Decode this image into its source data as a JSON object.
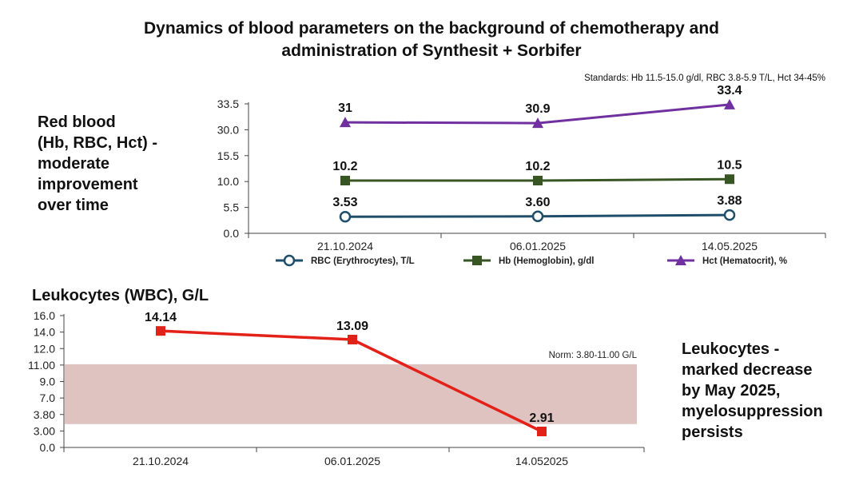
{
  "title": {
    "line1": "Dynamics of blood parameters on the background of chemotherapy and",
    "line2": "administration of Synthesit + Sorbifer"
  },
  "standards_note": "Standards: Hb 11.5-15.0 g/dl, RBC 3.8-5.9 T/L, Hct 34-45%",
  "red_blood_note": [
    "Red blood",
    "(Hb, RBC, Hct) -",
    "moderate",
    "improvement",
    "over time"
  ],
  "leukocytes_note": [
    "Leukocytes -",
    "marked decrease",
    "by May 2025,",
    "myelosuppression",
    "persists"
  ],
  "chart_data": [
    {
      "type": "line",
      "title": "",
      "categories": [
        "21.10.2024",
        "06.01.2025",
        "14.05.2025"
      ],
      "y_ticks": [
        "0.0",
        "5.5",
        "10.0",
        "15.5",
        "30.0",
        "33.5"
      ],
      "series": [
        {
          "name": "RBC (Erythrocytes), T/L",
          "values": [
            3.53,
            3.6,
            3.88
          ],
          "labels": [
            "3.53",
            "3.60",
            "3.88"
          ],
          "color": "#1f4e6b",
          "marker": "circle"
        },
        {
          "name": "Hb (Hemoglobin), g/dl",
          "values": [
            10.2,
            10.2,
            10.5
          ],
          "labels": [
            "10.2",
            "10.2",
            "10.5"
          ],
          "color": "#375623",
          "marker": "square"
        },
        {
          "name": "Hct (Hematocrit), %",
          "values": [
            31,
            30.9,
            33.4
          ],
          "labels": [
            "31",
            "30.9",
            "33.4"
          ],
          "color": "#7030a0",
          "marker": "triangle"
        }
      ],
      "legend_position": "bottom",
      "grid": false
    },
    {
      "type": "line",
      "title": "Leukocytes (WBC), G/L",
      "categories": [
        "21.10.2024",
        "06.01.2025",
        "14.052025"
      ],
      "y_ticks": [
        "0.0",
        "3.00",
        "3.80",
        "7.0",
        "9.0",
        "11.00",
        "12.0",
        "14.0",
        "16.0"
      ],
      "series": [
        {
          "name": "Leukocytes (WBC), G/L",
          "values": [
            14.14,
            13.09,
            2.91
          ],
          "labels": [
            "14.14",
            "13.09",
            "2.91"
          ],
          "color": "#e32119",
          "marker": "square"
        }
      ],
      "norm_band": {
        "label": "Norm: 3.80-11.00 G/L",
        "from": 3.8,
        "to": 11.0,
        "color": "#dfc3c1"
      },
      "grid": false
    }
  ]
}
